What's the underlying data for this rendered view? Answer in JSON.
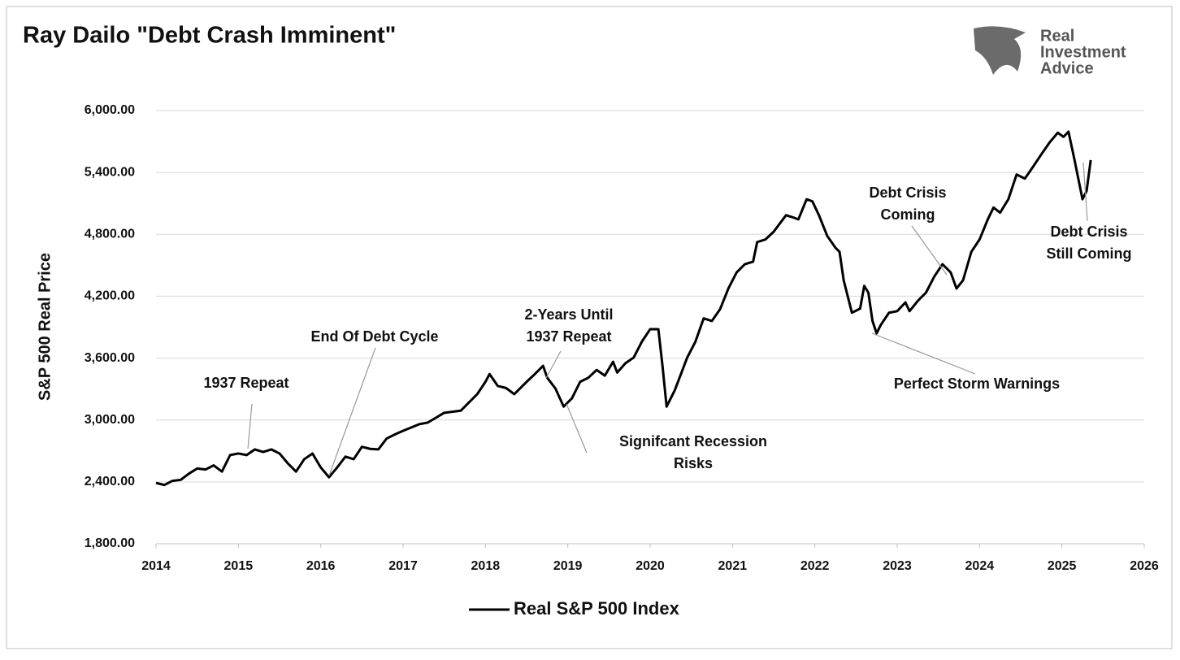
{
  "chart_data": {
    "type": "line",
    "title": "Ray Dailo \"Debt Crash Imminent\"",
    "logo": [
      "Real",
      "Investment",
      "Advice"
    ],
    "ylabel": "S&P 500 Real Price",
    "xlim": [
      2014,
      2026
    ],
    "xticks": [
      2014,
      2015,
      2016,
      2017,
      2018,
      2019,
      2020,
      2021,
      2022,
      2023,
      2024,
      2025,
      2026
    ],
    "ylim": [
      1800,
      6000
    ],
    "yticks": [
      {
        "value": 1800,
        "label": "1,800.00"
      },
      {
        "value": 2400,
        "label": "2,400.00"
      },
      {
        "value": 3000,
        "label": "3,000.00"
      },
      {
        "value": 3600,
        "label": "3,600.00"
      },
      {
        "value": 4200,
        "label": "4,200.00"
      },
      {
        "value": 4800,
        "label": "4,800.00"
      },
      {
        "value": 5400,
        "label": "5,400.00"
      },
      {
        "value": 6000,
        "label": "6,000.00"
      }
    ],
    "grid": true,
    "legend": "bottom",
    "x": [
      2014.0,
      2014.1,
      2014.2,
      2014.3,
      2014.4,
      2014.5,
      2014.6,
      2014.7,
      2014.8,
      2014.9,
      2015.0,
      2015.1,
      2015.2,
      2015.3,
      2015.4,
      2015.5,
      2015.6,
      2015.7,
      2015.8,
      2015.9,
      2016.0,
      2016.1,
      2016.2,
      2016.3,
      2016.4,
      2016.5,
      2016.6,
      2016.7,
      2016.8,
      2016.9,
      2017.0,
      2017.2,
      2017.3,
      2017.5,
      2017.7,
      2017.9,
      2018.0,
      2018.05,
      2018.15,
      2018.25,
      2018.35,
      2018.5,
      2018.6,
      2018.7,
      2018.75,
      2018.85,
      2018.95,
      2019.05,
      2019.15,
      2019.25,
      2019.35,
      2019.45,
      2019.55,
      2019.6,
      2019.7,
      2019.8,
      2019.9,
      2020.0,
      2020.1,
      2020.15,
      2020.2,
      2020.3,
      2020.45,
      2020.55,
      2020.65,
      2020.75,
      2020.85,
      2020.95,
      2021.05,
      2021.15,
      2021.25,
      2021.3,
      2021.4,
      2021.5,
      2021.65,
      2021.75,
      2021.8,
      2021.9,
      2021.97,
      2022.05,
      2022.15,
      2022.25,
      2022.3,
      2022.35,
      2022.45,
      2022.55,
      2022.6,
      2022.65,
      2022.7,
      2022.75,
      2022.8,
      2022.9,
      2023.0,
      2023.1,
      2023.15,
      2023.25,
      2023.35,
      2023.45,
      2023.55,
      2023.65,
      2023.72,
      2023.8,
      2023.9,
      2024.0,
      2024.1,
      2024.17,
      2024.25,
      2024.35,
      2024.45,
      2024.55,
      2024.65,
      2024.75,
      2024.85,
      2024.95,
      2025.02,
      2025.08,
      2025.15,
      2025.25,
      2025.3,
      2025.35
    ],
    "series": [
      {
        "name": "Real S&P 500 Index",
        "color": "#000000",
        "values": [
          2390,
          2370,
          2410,
          2420,
          2480,
          2530,
          2520,
          2560,
          2500,
          2660,
          2675,
          2660,
          2715,
          2690,
          2715,
          2675,
          2580,
          2500,
          2620,
          2675,
          2540,
          2445,
          2540,
          2645,
          2620,
          2740,
          2720,
          2715,
          2820,
          2860,
          2895,
          2960,
          2975,
          3070,
          3090,
          3250,
          3370,
          3445,
          3330,
          3310,
          3250,
          3370,
          3445,
          3525,
          3410,
          3305,
          3130,
          3210,
          3370,
          3410,
          3485,
          3430,
          3565,
          3460,
          3550,
          3605,
          3760,
          3880,
          3880,
          3525,
          3130,
          3290,
          3605,
          3760,
          3985,
          3960,
          4075,
          4275,
          4430,
          4510,
          4535,
          4725,
          4750,
          4825,
          4985,
          4960,
          4945,
          5140,
          5120,
          4985,
          4785,
          4670,
          4630,
          4355,
          4040,
          4080,
          4300,
          4235,
          3960,
          3840,
          3920,
          4040,
          4055,
          4140,
          4055,
          4155,
          4235,
          4390,
          4510,
          4430,
          4275,
          4355,
          4630,
          4750,
          4945,
          5060,
          5010,
          5140,
          5380,
          5340,
          5455,
          5575,
          5690,
          5785,
          5745,
          5795,
          5535,
          5140,
          5220,
          5520
        ]
      }
    ],
    "annotations": [
      {
        "text": [
          "1937 Repeat"
        ]
      },
      {
        "text": [
          "End Of Debt Cycle"
        ]
      },
      {
        "text": [
          "2-Years Until",
          "1937 Repeat"
        ]
      },
      {
        "text": [
          "Signifcant Recession",
          "Risks"
        ]
      },
      {
        "text": [
          "Debt Crisis",
          "Coming"
        ]
      },
      {
        "text": [
          "Perfect Storm Warnings"
        ]
      },
      {
        "text": [
          "Debt Crisis",
          "Still Coming"
        ]
      }
    ]
  }
}
